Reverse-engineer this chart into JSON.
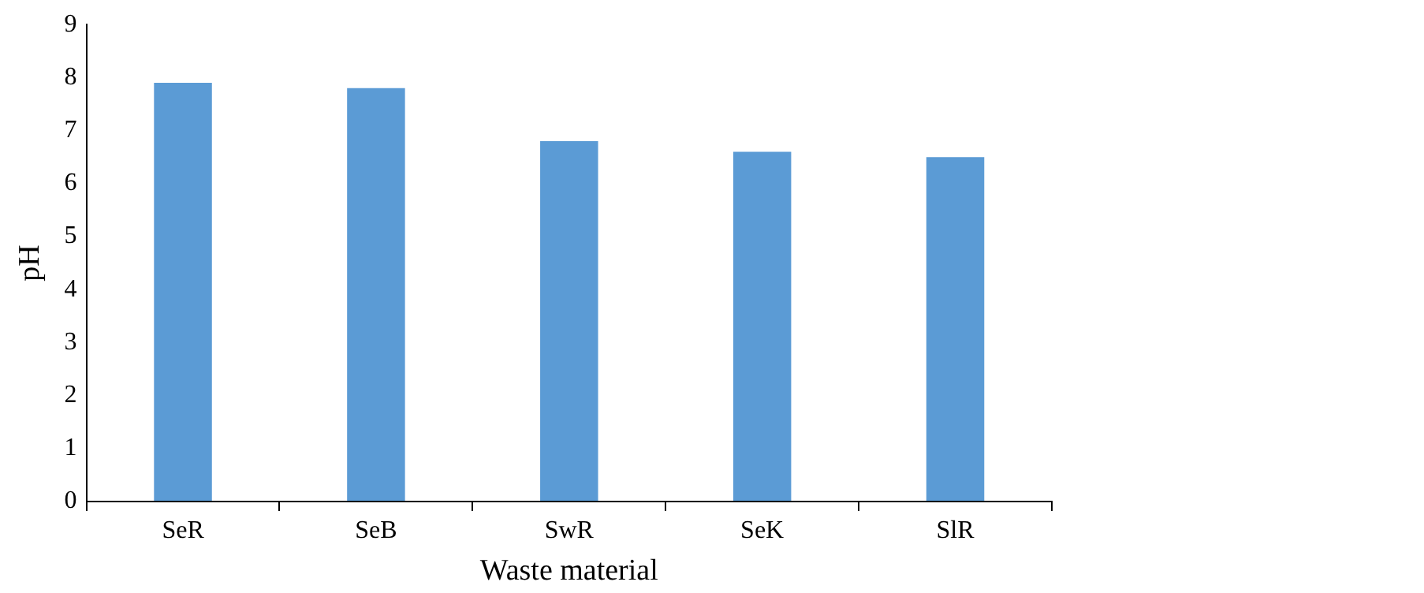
{
  "chart_data": {
    "type": "bar",
    "xlabel": "Waste material",
    "ylabel": "pH",
    "categories": [
      "SeR",
      "SeB",
      "SwR",
      "SeK",
      "SlR"
    ],
    "values": [
      7.9,
      7.8,
      6.8,
      6.6,
      6.5
    ],
    "color": "#5b9bd5",
    "ylim": [
      0,
      9
    ],
    "yticks": [
      0,
      1,
      2,
      3,
      4,
      5,
      6,
      7,
      8,
      9
    ],
    "grid": false,
    "legend": false
  }
}
